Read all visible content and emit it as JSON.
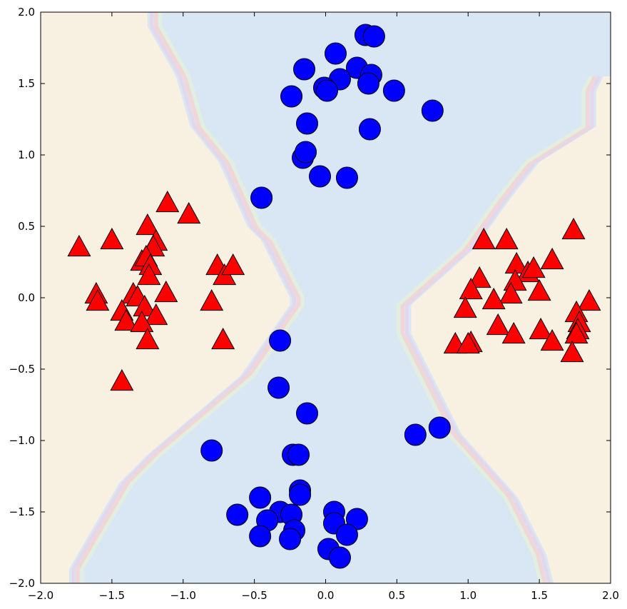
{
  "chart_data": {
    "type": "scatter",
    "title": "",
    "xlabel": "",
    "ylabel": "",
    "xlim": [
      -2.0,
      2.0
    ],
    "ylim": [
      -2.0,
      2.0
    ],
    "grid": false,
    "legend": "none",
    "x_ticks": [
      "−2.0",
      "−1.5",
      "−1.0",
      "−0.5",
      "0.0",
      "0.5",
      "1.0",
      "1.5",
      "2.0"
    ],
    "y_ticks": [
      "−2.0",
      "−1.5",
      "−1.0",
      "−0.5",
      "0.0",
      "0.5",
      "1.0",
      "1.5",
      "2.0"
    ],
    "decision_regions": {
      "description": "Classifier decision surface: class-A (triangle) regions on the left and right, class-B (circle) region in an hourglass band through the middle.",
      "colors": {
        "class_triangle": "#f8f1e1",
        "class_circle": "#d9e6f3",
        "contour_lines": [
          "#e3d6ea",
          "#f3d4d2",
          "#e3f0dc"
        ]
      },
      "left_boundary": [
        [
          -1.25,
          2.0
        ],
        [
          -1.25,
          1.9
        ],
        [
          -1.05,
          1.55
        ],
        [
          -0.95,
          1.2
        ],
        [
          -0.75,
          0.95
        ],
        [
          -0.55,
          0.5
        ],
        [
          -0.45,
          0.4
        ],
        [
          -0.25,
          0.0
        ],
        [
          -0.25,
          -0.05
        ],
        [
          -0.6,
          -0.55
        ],
        [
          -1.25,
          -1.1
        ],
        [
          -1.45,
          -1.3
        ],
        [
          -1.8,
          -1.9
        ],
        [
          -1.8,
          -2.0
        ]
      ],
      "right_boundary": [
        [
          1.95,
          1.55
        ],
        [
          1.9,
          1.45
        ],
        [
          1.9,
          1.2
        ],
        [
          1.5,
          0.95
        ],
        [
          1.3,
          0.7
        ],
        [
          1.05,
          0.35
        ],
        [
          0.6,
          -0.05
        ],
        [
          0.6,
          -0.25
        ],
        [
          0.8,
          -0.65
        ],
        [
          0.95,
          -0.95
        ],
        [
          1.35,
          -1.4
        ],
        [
          1.55,
          -1.8
        ],
        [
          1.6,
          -2.0
        ]
      ]
    },
    "series": [
      {
        "marker": "triangle",
        "color": "#ff0000",
        "points": [
          [
            -1.11,
            0.66
          ],
          [
            -0.96,
            0.58
          ],
          [
            -1.25,
            0.5
          ],
          [
            -1.5,
            0.4
          ],
          [
            -1.73,
            0.35
          ],
          [
            -1.19,
            0.39
          ],
          [
            -1.21,
            0.35
          ],
          [
            -1.29,
            0.25
          ],
          [
            -1.26,
            0.28
          ],
          [
            -1.23,
            0.22
          ],
          [
            -1.24,
            0.15
          ],
          [
            -0.76,
            0.22
          ],
          [
            -0.71,
            0.15
          ],
          [
            -0.65,
            0.22
          ],
          [
            -1.61,
            0.02
          ],
          [
            -1.6,
            -0.03
          ],
          [
            -1.35,
            0.02
          ],
          [
            -1.12,
            0.03
          ],
          [
            -1.32,
            -0.0
          ],
          [
            -1.27,
            -0.07
          ],
          [
            -1.43,
            -0.1
          ],
          [
            -1.4,
            -0.17
          ],
          [
            -1.19,
            -0.13
          ],
          [
            -1.29,
            -0.18
          ],
          [
            -1.25,
            -0.3
          ],
          [
            -0.8,
            -0.03
          ],
          [
            -0.72,
            -0.3
          ],
          [
            -1.43,
            -0.59
          ],
          [
            1.11,
            0.4
          ],
          [
            1.27,
            0.4
          ],
          [
            1.74,
            0.47
          ],
          [
            1.34,
            0.23
          ],
          [
            1.42,
            0.17
          ],
          [
            1.46,
            0.2
          ],
          [
            1.59,
            0.26
          ],
          [
            1.08,
            0.13
          ],
          [
            1.33,
            0.11
          ],
          [
            1.02,
            0.05
          ],
          [
            1.5,
            0.04
          ],
          [
            1.3,
            0.02
          ],
          [
            1.18,
            -0.02
          ],
          [
            1.85,
            -0.03
          ],
          [
            0.98,
            -0.08
          ],
          [
            1.76,
            -0.11
          ],
          [
            1.21,
            -0.2
          ],
          [
            1.78,
            -0.18
          ],
          [
            1.77,
            -0.23
          ],
          [
            1.51,
            -0.23
          ],
          [
            1.32,
            -0.26
          ],
          [
            1.76,
            -0.26
          ],
          [
            0.91,
            -0.33
          ],
          [
            1.02,
            -0.32
          ],
          [
            1.0,
            -0.33
          ],
          [
            1.59,
            -0.31
          ],
          [
            1.73,
            -0.39
          ]
        ]
      },
      {
        "marker": "circle",
        "color": "#0000ff",
        "points": [
          [
            0.28,
            1.84
          ],
          [
            0.34,
            1.83
          ],
          [
            0.07,
            1.71
          ],
          [
            -0.15,
            1.6
          ],
          [
            0.22,
            1.61
          ],
          [
            0.32,
            1.56
          ],
          [
            0.1,
            1.53
          ],
          [
            0.3,
            1.5
          ],
          [
            -0.01,
            1.47
          ],
          [
            0.48,
            1.45
          ],
          [
            0.01,
            1.45
          ],
          [
            -0.24,
            1.41
          ],
          [
            0.75,
            1.31
          ],
          [
            -0.13,
            1.22
          ],
          [
            0.31,
            1.18
          ],
          [
            -0.16,
            0.98
          ],
          [
            -0.14,
            1.02
          ],
          [
            -0.04,
            0.85
          ],
          [
            0.15,
            0.84
          ],
          [
            -0.45,
            0.7
          ],
          [
            -0.32,
            -0.3
          ],
          [
            -0.33,
            -0.63
          ],
          [
            -0.13,
            -0.81
          ],
          [
            0.8,
            -0.91
          ],
          [
            0.63,
            -0.96
          ],
          [
            -0.8,
            -1.07
          ],
          [
            -0.23,
            -1.1
          ],
          [
            -0.19,
            -1.1
          ],
          [
            -0.18,
            -1.35
          ],
          [
            -0.18,
            -1.38
          ],
          [
            -0.46,
            -1.4
          ],
          [
            0.06,
            -1.5
          ],
          [
            -0.62,
            -1.52
          ],
          [
            -0.32,
            -1.5
          ],
          [
            -0.24,
            -1.52
          ],
          [
            -0.41,
            -1.56
          ],
          [
            0.22,
            -1.55
          ],
          [
            0.06,
            -1.58
          ],
          [
            -0.22,
            -1.63
          ],
          [
            0.15,
            -1.66
          ],
          [
            -0.46,
            -1.67
          ],
          [
            -0.25,
            -1.69
          ],
          [
            0.02,
            -1.76
          ],
          [
            0.1,
            -1.82
          ]
        ]
      }
    ]
  }
}
